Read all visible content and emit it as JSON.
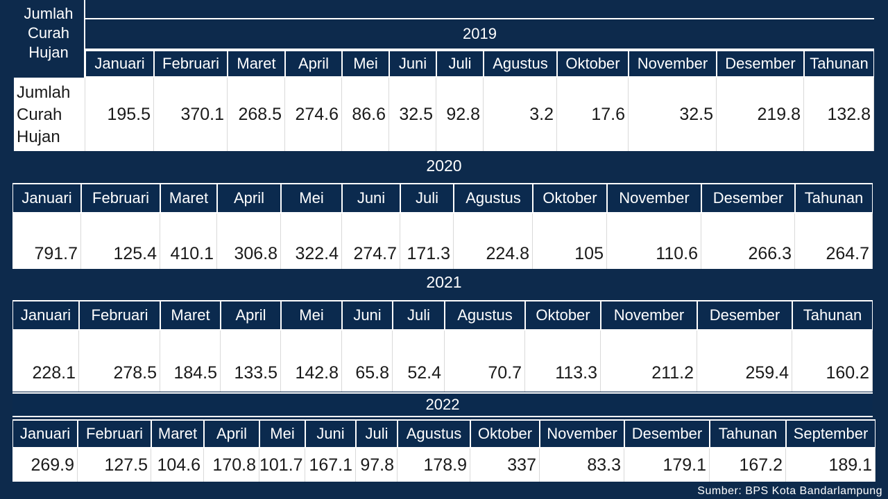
{
  "corner_label": "Jumlah\nCurah\nHujan",
  "row_label": "Jumlah\nCurah\nHujan",
  "source": "Sumber: BPS Kota Bandarlampung",
  "tables": [
    {
      "year": "2019",
      "headers": [
        "Januari",
        "Februari",
        "Maret",
        "April",
        "Mei",
        "Juni",
        "Juli",
        "Agustus",
        "Oktober",
        "November",
        "Desember",
        "Tahunan"
      ],
      "values": [
        "195.5",
        "370.1",
        "268.5",
        "274.6",
        "86.6",
        "32.5",
        "92.8",
        "3.2",
        "17.6",
        "32.5",
        "219.8",
        "132.8"
      ]
    },
    {
      "year": "2020",
      "headers": [
        "Januari",
        "Februari",
        "Maret",
        "April",
        "Mei",
        "Juni",
        "Juli",
        "Agustus",
        "Oktober",
        "November",
        "Desember",
        "Tahunan"
      ],
      "values": [
        "791.7",
        "125.4",
        "410.1",
        "306.8",
        "322.4",
        "274.7",
        "171.3",
        "224.8",
        "105",
        "110.6",
        "266.3",
        "264.7"
      ]
    },
    {
      "year": "2021",
      "headers": [
        "Januari",
        "Februari",
        "Maret",
        "April",
        "Mei",
        "Juni",
        "Juli",
        "Agustus",
        "Oktober",
        "November",
        "Desember",
        "Tahunan"
      ],
      "values": [
        "228.1",
        "278.5",
        "184.5",
        "133.5",
        "142.8",
        "65.8",
        "52.4",
        "70.7",
        "113.3",
        "211.2",
        "259.4",
        "160.2"
      ]
    },
    {
      "year": "2022",
      "headers": [
        "Januari",
        "Februari",
        "Maret",
        "April",
        "Mei",
        "Juni",
        "Juli",
        "Agustus",
        "Oktober",
        "November",
        "Desember",
        "Tahunan",
        "September"
      ],
      "values": [
        "269.9",
        "127.5",
        "104.6",
        "170.8",
        "101.7",
        "167.1",
        "97.8",
        "178.9",
        "337",
        "83.3",
        "179.1",
        "167.2",
        "189.1"
      ]
    }
  ]
}
